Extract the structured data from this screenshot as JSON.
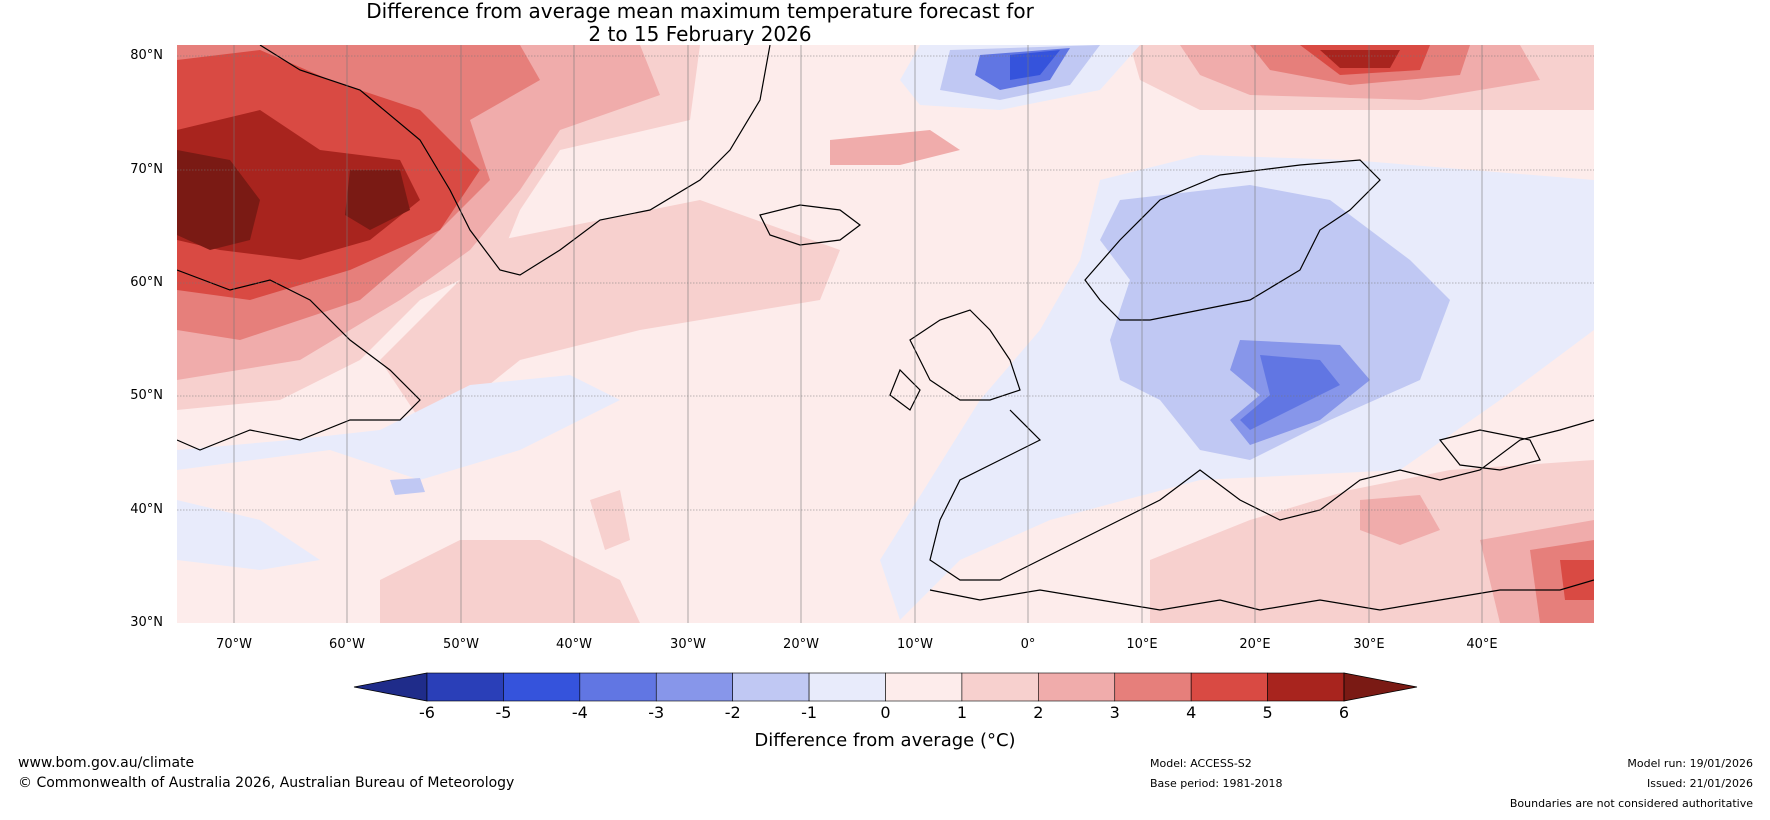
{
  "title": {
    "line1": "Difference from average mean maximum temperature forecast for",
    "line2": "2 to 15 February 2026"
  },
  "map": {
    "lat_labels": [
      "80°N",
      "70°N",
      "60°N",
      "50°N",
      "40°N",
      "30°N"
    ],
    "lon_labels": [
      "70°W",
      "60°W",
      "50°W",
      "40°W",
      "30°W",
      "20°W",
      "10°W",
      "0°",
      "10°E",
      "20°E",
      "30°E",
      "40°E"
    ]
  },
  "colorbar": {
    "title": "Difference from average (°C)",
    "ticks": [
      "-6",
      "-5",
      "-4",
      "-3",
      "-2",
      "-1",
      "0",
      "1",
      "2",
      "3",
      "4",
      "5",
      "6"
    ],
    "colors": [
      "#1f2c8a",
      "#2a3fb8",
      "#3553dc",
      "#6176e3",
      "#8796ea",
      "#c0c8f3",
      "#e8ebfb",
      "#fdeceb",
      "#f7d0ce",
      "#f0acab",
      "#e67f7b",
      "#d94a43",
      "#a8241e",
      "#7a1a14"
    ]
  },
  "footer": {
    "url": "www.bom.gov.au/climate",
    "copyright": "© Commonwealth of Australia 2026, Australian Bureau of Meteorology",
    "model": "Model: ACCESS-S2",
    "base_period": "Base period: 1981-2018",
    "model_run": "Model run: 19/01/2026",
    "issued": "Issued: 21/01/2026",
    "disclaimer": "Boundaries are not considered authoritative"
  }
}
